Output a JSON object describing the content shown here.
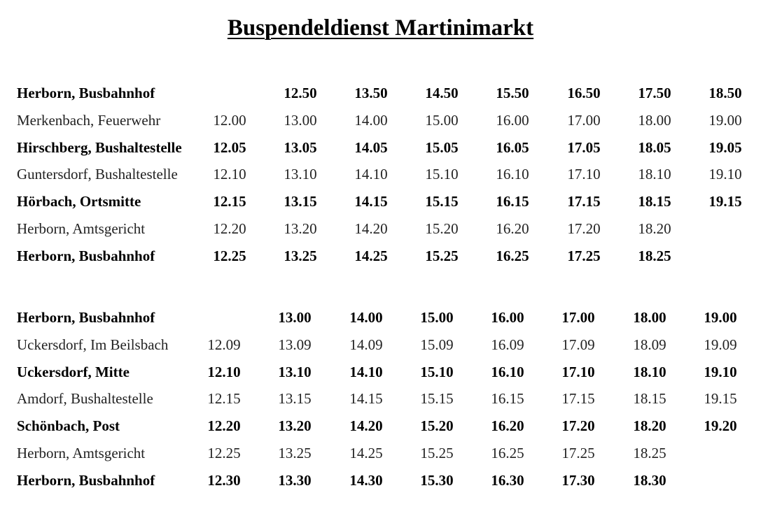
{
  "title": "Buspendeldienst Martinimarkt",
  "tables": [
    {
      "rows": [
        {
          "stop": "Herborn, Busbahnhof",
          "bold": true,
          "times": [
            "",
            "12.50",
            "13.50",
            "14.50",
            "15.50",
            "16.50",
            "17.50",
            "18.50"
          ]
        },
        {
          "stop": "Merkenbach, Feuerwehr",
          "bold": false,
          "times": [
            "12.00",
            "13.00",
            "14.00",
            "15.00",
            "16.00",
            "17.00",
            "18.00",
            "19.00"
          ]
        },
        {
          "stop": "Hirschberg, Bushaltestelle",
          "bold": true,
          "times": [
            "12.05",
            "13.05",
            "14.05",
            "15.05",
            "16.05",
            "17.05",
            "18.05",
            "19.05"
          ]
        },
        {
          "stop": "Guntersdorf, Bushaltestelle",
          "bold": false,
          "times": [
            "12.10",
            "13.10",
            "14.10",
            "15.10",
            "16.10",
            "17.10",
            "18.10",
            "19.10"
          ]
        },
        {
          "stop": "Hörbach, Ortsmitte",
          "bold": true,
          "times": [
            "12.15",
            "13.15",
            "14.15",
            "15.15",
            "16.15",
            "17.15",
            "18.15",
            "19.15"
          ]
        },
        {
          "stop": "Herborn, Amtsgericht",
          "bold": false,
          "times": [
            "12.20",
            "13.20",
            "14.20",
            "15.20",
            "16.20",
            "17.20",
            "18.20",
            ""
          ]
        },
        {
          "stop": "Herborn, Busbahnhof",
          "bold": true,
          "times": [
            "12.25",
            "13.25",
            "14.25",
            "15.25",
            "16.25",
            "17.25",
            "18.25",
            ""
          ]
        }
      ]
    },
    {
      "rows": [
        {
          "stop": "Herborn, Busbahnhof",
          "bold": true,
          "times": [
            "",
            "13.00",
            "14.00",
            "15.00",
            "16.00",
            "17.00",
            "18.00",
            "19.00"
          ]
        },
        {
          "stop": "Uckersdorf, Im Beilsbach",
          "bold": false,
          "times": [
            "12.09",
            "13.09",
            "14.09",
            "15.09",
            "16.09",
            "17.09",
            "18.09",
            "19.09"
          ]
        },
        {
          "stop": "Uckersdorf, Mitte",
          "bold": true,
          "times": [
            "12.10",
            "13.10",
            "14.10",
            "15.10",
            "16.10",
            "17.10",
            "18.10",
            "19.10"
          ]
        },
        {
          "stop": "Amdorf, Bushaltestelle",
          "bold": false,
          "times": [
            "12.15",
            "13.15",
            "14.15",
            "15.15",
            "16.15",
            "17.15",
            "18.15",
            "19.15"
          ]
        },
        {
          "stop": "Schönbach, Post",
          "bold": true,
          "times": [
            "12.20",
            "13.20",
            "14.20",
            "15.20",
            "16.20",
            "17.20",
            "18.20",
            "19.20"
          ]
        },
        {
          "stop": "Herborn, Amtsgericht",
          "bold": false,
          "times": [
            "12.25",
            "13.25",
            "14.25",
            "15.25",
            "16.25",
            "17.25",
            "18.25",
            ""
          ]
        },
        {
          "stop": "Herborn, Busbahnhof",
          "bold": true,
          "times": [
            "12.30",
            "13.30",
            "14.30",
            "15.30",
            "16.30",
            "17.30",
            "18.30",
            ""
          ]
        }
      ]
    }
  ]
}
